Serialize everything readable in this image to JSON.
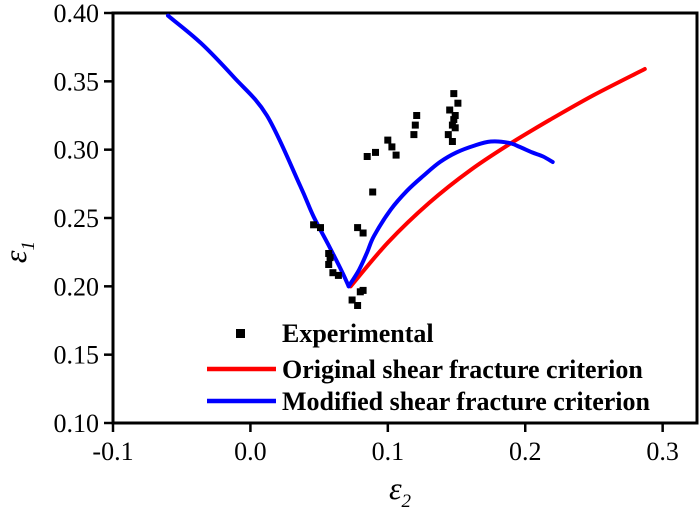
{
  "figure": {
    "background": "#ffffff",
    "axis_color": "#000000"
  },
  "chart_data": {
    "type": "scatter+line",
    "title": "",
    "xlabel": {
      "base": "ε",
      "sub": "2"
    },
    "ylabel": {
      "base": "ε",
      "sub": "1"
    },
    "xlim": [
      -0.1,
      0.325
    ],
    "ylim": [
      0.1,
      0.4
    ],
    "grid": false,
    "legend_position": "inside-bottom-left-of-plot",
    "x_ticks": {
      "values": [
        -0.1,
        0.0,
        0.1,
        0.2,
        0.3
      ],
      "labels": [
        "-0.1",
        "0.0",
        "0.1",
        "0.2",
        "0.3"
      ]
    },
    "y_ticks": {
      "values": [
        0.1,
        0.15,
        0.2,
        0.25,
        0.3,
        0.35,
        0.4
      ],
      "labels": [
        "0.10",
        "0.15",
        "0.20",
        "0.25",
        "0.30",
        "0.35",
        "0.40"
      ]
    },
    "series": [
      {
        "name": "Experimental",
        "type": "scatter",
        "marker": "square",
        "color": "#000000",
        "marker_size": 7,
        "points": [
          [
            0.148,
            0.341
          ],
          [
            0.151,
            0.334
          ],
          [
            0.145,
            0.329
          ],
          [
            0.149,
            0.325
          ],
          [
            0.148,
            0.322
          ],
          [
            0.147,
            0.318
          ],
          [
            0.149,
            0.316
          ],
          [
            0.144,
            0.311
          ],
          [
            0.147,
            0.306
          ],
          [
            0.121,
            0.325
          ],
          [
            0.12,
            0.318
          ],
          [
            0.119,
            0.311
          ],
          [
            0.1,
            0.307
          ],
          [
            0.103,
            0.302
          ],
          [
            0.106,
            0.296
          ],
          [
            0.091,
            0.298
          ],
          [
            0.085,
            0.295
          ],
          [
            0.089,
            0.269
          ],
          [
            0.046,
            0.245
          ],
          [
            0.051,
            0.243
          ],
          [
            0.078,
            0.243
          ],
          [
            0.082,
            0.239
          ],
          [
            0.057,
            0.224
          ],
          [
            0.058,
            0.221
          ],
          [
            0.057,
            0.216
          ],
          [
            0.06,
            0.21
          ],
          [
            0.064,
            0.208
          ],
          [
            0.08,
            0.196
          ],
          [
            0.082,
            0.197
          ],
          [
            0.074,
            0.19
          ],
          [
            0.078,
            0.186
          ]
        ]
      },
      {
        "name": "Original shear fracture criterion",
        "type": "line",
        "color": "#ff0000",
        "line_width": 4,
        "segments": [
          [
            [
              0.073,
              0.2
            ],
            [
              0.1,
              0.232
            ],
            [
              0.13,
              0.261
            ],
            [
              0.16,
              0.285
            ],
            [
              0.19,
              0.305
            ],
            [
              0.22,
              0.323
            ],
            [
              0.25,
              0.34
            ],
            [
              0.287,
              0.359
            ]
          ]
        ]
      },
      {
        "name": "Modified shear fracture criterion",
        "type": "line",
        "color": "#0000ff",
        "line_width": 4,
        "segments": [
          [
            [
              -0.06,
              0.398
            ],
            [
              -0.036,
              0.378
            ],
            [
              -0.012,
              0.353
            ],
            [
              0.012,
              0.325
            ],
            [
              0.036,
              0.274
            ],
            [
              0.046,
              0.251
            ],
            [
              0.058,
              0.228
            ],
            [
              0.067,
              0.21
            ],
            [
              0.0715,
              0.2
            ]
          ],
          [
            [
              0.0715,
              0.2
            ],
            [
              0.079,
              0.212
            ],
            [
              0.085,
              0.225
            ],
            [
              0.09,
              0.237
            ],
            [
              0.102,
              0.256
            ],
            [
              0.114,
              0.27
            ],
            [
              0.126,
              0.281
            ],
            [
              0.138,
              0.291
            ],
            [
              0.15,
              0.298
            ],
            [
              0.163,
              0.303
            ],
            [
              0.175,
              0.306
            ],
            [
              0.188,
              0.305
            ],
            [
              0.196,
              0.302
            ],
            [
              0.205,
              0.298
            ],
            [
              0.213,
              0.295
            ],
            [
              0.22,
              0.291
            ]
          ]
        ]
      }
    ]
  }
}
